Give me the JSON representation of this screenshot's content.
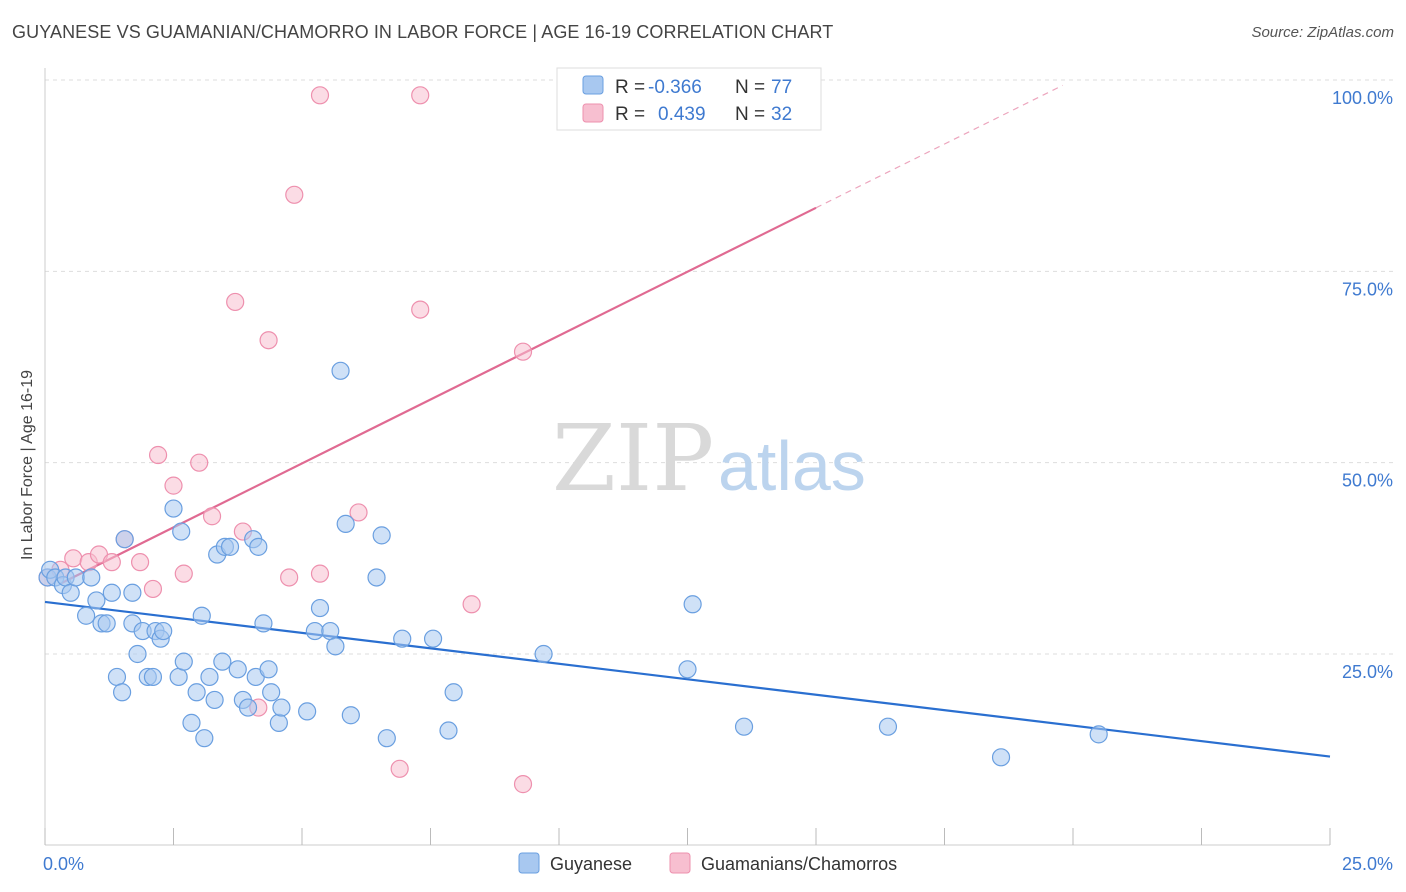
{
  "title": "GUYANESE VS GUAMANIAN/CHAMORRO IN LABOR FORCE | AGE 16-19 CORRELATION CHART",
  "source": "Source: ZipAtlas.com",
  "watermark": {
    "zip": "ZIP",
    "atlas": "atlas"
  },
  "colors": {
    "blue_fill": "#a8c8f0",
    "blue_stroke": "#6a9fe0",
    "blue_line": "#2a6fd0",
    "pink_fill": "#f7bfd0",
    "pink_stroke": "#ee90ae",
    "pink_line": "#e06a92",
    "tick_color": "#3f7ad0",
    "grid": "#dddddd"
  },
  "legend": {
    "rows": [
      {
        "r_label": "R =",
        "r_value": "-0.366",
        "n_label": "N =",
        "n_value": "77"
      },
      {
        "r_label": "R =",
        "r_value": "0.439",
        "n_label": "N =",
        "n_value": "32"
      }
    ]
  },
  "chart_data": {
    "type": "scatter",
    "title": "GUYANESE VS GUAMANIAN/CHAMORRO IN LABOR FORCE | AGE 16-19 CORRELATION CHART",
    "xlabel": "",
    "ylabel": "In Labor Force | Age 16-19",
    "xlim": [
      0,
      25
    ],
    "ylim": [
      0,
      100
    ],
    "x_tick_labels": [
      "0.0%",
      "25.0%"
    ],
    "y_tick_labels": [
      "100.0%",
      "75.0%",
      "50.0%",
      "25.0%"
    ],
    "y_tick_values": [
      100,
      75,
      50,
      25
    ],
    "grid": true,
    "legend_position": "top-center",
    "series": [
      {
        "name": "Guyanese",
        "color": "#a8c8f0",
        "trend": {
          "x0": 0,
          "y0": 31.8,
          "x1": 25,
          "y1": 11.6
        },
        "points": [
          [
            0.05,
            35
          ],
          [
            0.1,
            36
          ],
          [
            0.2,
            35
          ],
          [
            0.35,
            34
          ],
          [
            0.4,
            35
          ],
          [
            0.5,
            33
          ],
          [
            0.6,
            35
          ],
          [
            0.8,
            30
          ],
          [
            0.9,
            35
          ],
          [
            1.0,
            32
          ],
          [
            1.1,
            29
          ],
          [
            1.2,
            29
          ],
          [
            1.3,
            33
          ],
          [
            1.4,
            22
          ],
          [
            1.5,
            20
          ],
          [
            1.55,
            40
          ],
          [
            1.7,
            33
          ],
          [
            1.7,
            29
          ],
          [
            1.8,
            25
          ],
          [
            1.9,
            28
          ],
          [
            2.0,
            22
          ],
          [
            2.1,
            22
          ],
          [
            2.15,
            28
          ],
          [
            2.25,
            27
          ],
          [
            2.3,
            28
          ],
          [
            2.5,
            44
          ],
          [
            2.6,
            22
          ],
          [
            2.65,
            41
          ],
          [
            2.7,
            24
          ],
          [
            2.85,
            16
          ],
          [
            2.95,
            20
          ],
          [
            3.05,
            30
          ],
          [
            3.1,
            14
          ],
          [
            3.2,
            22
          ],
          [
            3.3,
            19
          ],
          [
            3.35,
            38
          ],
          [
            3.45,
            24
          ],
          [
            3.5,
            39
          ],
          [
            3.6,
            39
          ],
          [
            3.75,
            23
          ],
          [
            3.85,
            19
          ],
          [
            3.95,
            18
          ],
          [
            4.05,
            40
          ],
          [
            4.1,
            22
          ],
          [
            4.15,
            39
          ],
          [
            4.25,
            29
          ],
          [
            4.35,
            23
          ],
          [
            4.4,
            20
          ],
          [
            4.55,
            16
          ],
          [
            4.6,
            18
          ],
          [
            5.1,
            17.5
          ],
          [
            5.25,
            28
          ],
          [
            5.35,
            31
          ],
          [
            5.55,
            28
          ],
          [
            5.65,
            26
          ],
          [
            5.75,
            62
          ],
          [
            5.85,
            42
          ],
          [
            5.95,
            17
          ],
          [
            6.45,
            35
          ],
          [
            6.55,
            40.5
          ],
          [
            6.65,
            14
          ],
          [
            6.95,
            27
          ],
          [
            7.55,
            27
          ],
          [
            7.85,
            15
          ],
          [
            7.95,
            20
          ],
          [
            9.7,
            25
          ],
          [
            12.5,
            23
          ],
          [
            12.6,
            31.5
          ],
          [
            13.6,
            15.5
          ],
          [
            16.4,
            15.5
          ],
          [
            18.6,
            11.5
          ],
          [
            20.5,
            14.5
          ]
        ]
      },
      {
        "name": "Guamanians/Chamorros",
        "color": "#f7bfd0",
        "trend": {
          "x0": 0.3,
          "y0": 34.2,
          "x1": 15,
          "y1": 83.3,
          "dashed_x1": 19.8,
          "dashed_y1": 99.3
        },
        "points": [
          [
            0.05,
            35
          ],
          [
            0.3,
            36
          ],
          [
            0.55,
            37.5
          ],
          [
            0.85,
            37
          ],
          [
            1.05,
            38
          ],
          [
            1.3,
            37
          ],
          [
            1.55,
            40
          ],
          [
            1.85,
            37
          ],
          [
            2.1,
            33.5
          ],
          [
            2.2,
            51
          ],
          [
            2.5,
            47
          ],
          [
            2.7,
            35.5
          ],
          [
            3.0,
            50
          ],
          [
            3.25,
            43
          ],
          [
            3.7,
            71
          ],
          [
            3.85,
            41
          ],
          [
            4.15,
            18
          ],
          [
            4.35,
            66
          ],
          [
            4.75,
            35
          ],
          [
            4.85,
            85
          ],
          [
            5.35,
            98
          ],
          [
            5.35,
            35.5
          ],
          [
            6.1,
            43.5
          ],
          [
            6.9,
            10
          ],
          [
            7.3,
            98
          ],
          [
            7.3,
            70
          ],
          [
            8.3,
            31.5
          ],
          [
            9.3,
            64.5
          ],
          [
            9.3,
            8
          ]
        ]
      }
    ]
  },
  "bottom_legend": {
    "items": [
      "Guyanese",
      "Guamanians/Chamorros"
    ]
  }
}
